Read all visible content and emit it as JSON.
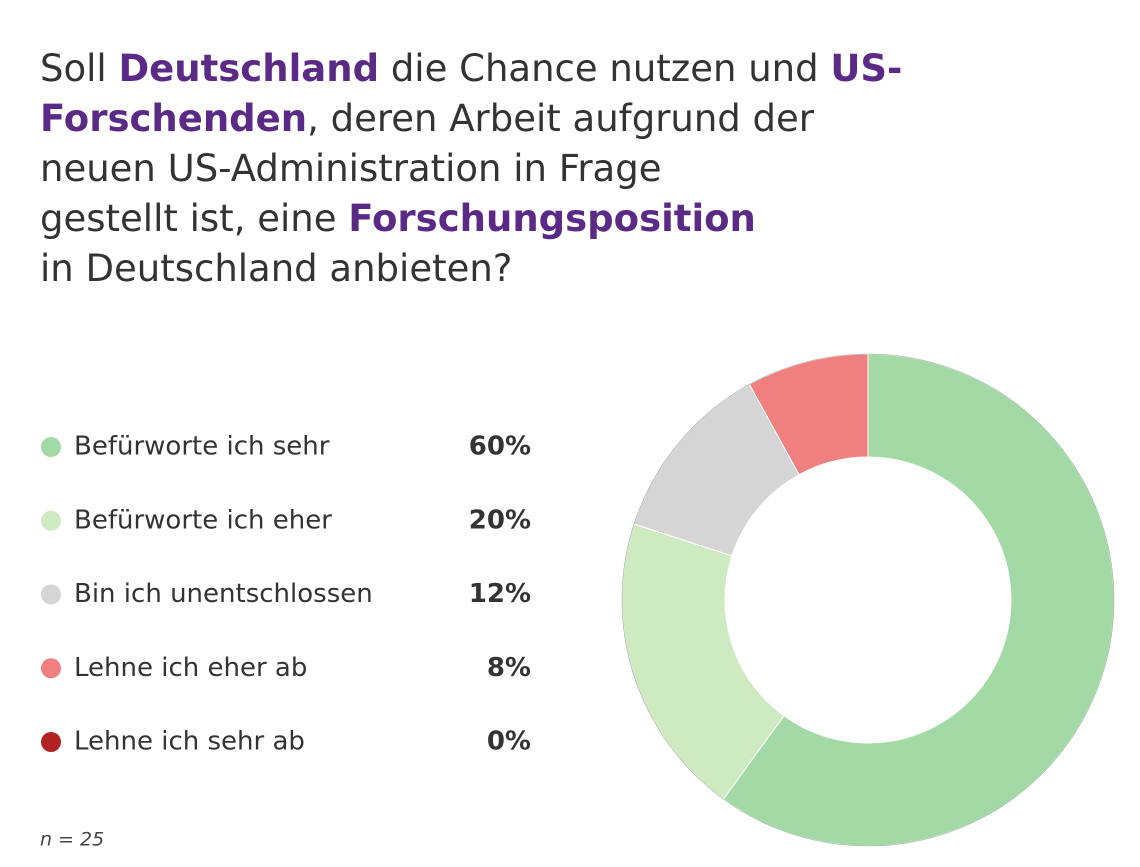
{
  "chart_data": {
    "type": "donut",
    "title_lines": [
      [
        {
          "text": "Soll ",
          "emphasis": false
        },
        {
          "text": "Deutschland",
          "emphasis": true
        },
        {
          "text": " die Chance nutzen und ",
          "emphasis": false
        },
        {
          "text": "US-",
          "emphasis": true
        }
      ],
      [
        {
          "text": "Forschenden",
          "emphasis": true
        },
        {
          "text": ", deren Arbeit aufgrund der",
          "emphasis": false
        }
      ],
      [
        {
          "text": "neuen US-Administration in Frage",
          "emphasis": false
        }
      ],
      [
        {
          "text": "gestellt ist, eine ",
          "emphasis": false
        },
        {
          "text": "Forschungsposition",
          "emphasis": true
        }
      ],
      [
        {
          "text": "in Deutschland anbieten?",
          "emphasis": false
        }
      ]
    ],
    "emphasis_color": "#5b2a86",
    "categories": [
      "Befürworte ich sehr",
      "Befürworte ich eher",
      "Bin ich unentschlossen",
      "Lehne ich eher ab",
      "Lehne ich sehr ab"
    ],
    "values": [
      60,
      20,
      12,
      8,
      0
    ],
    "value_labels": [
      "60%",
      "20%",
      "12%",
      "8%",
      "0%"
    ],
    "colors": [
      "#a3d9a5",
      "#cdeac0",
      "#d5d5d5",
      "#f08080",
      "#b22222"
    ],
    "note": "n = 25"
  }
}
